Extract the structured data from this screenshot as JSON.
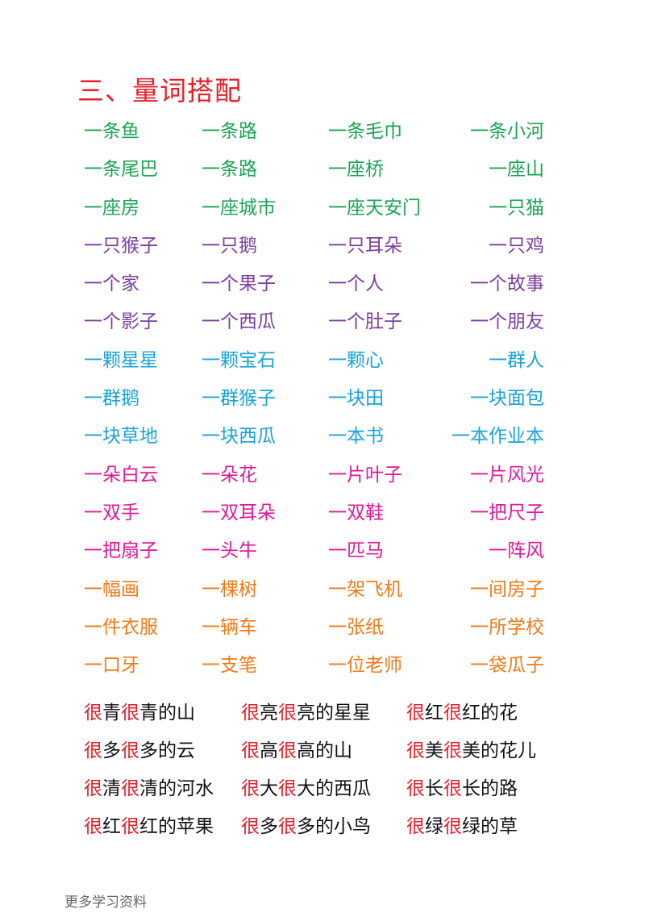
{
  "title": "三、量词搭配",
  "colors": {
    "title": "#e8202a",
    "green": "#1aa454",
    "red": "#e8202a",
    "purple": "#7b3fa0",
    "blue": "#18a3d9",
    "magenta": "#e0199a",
    "orange": "#ef7a18",
    "black": "#111111",
    "footer": "#666666"
  },
  "rows": [
    {
      "cells": [
        {
          "q": "一条",
          "n": "鱼",
          "qc": "#1aa454",
          "nc": "#1aa454"
        },
        {
          "q": "一条",
          "n": "路",
          "qc": "#1aa454",
          "nc": "#1aa454"
        },
        {
          "q": "一条",
          "n": "毛巾",
          "qc": "#1aa454",
          "nc": "#1aa454"
        },
        {
          "q": "一条",
          "n": "小河",
          "qc": "#1aa454",
          "nc": "#1aa454"
        }
      ]
    },
    {
      "cells": [
        {
          "q": "一条",
          "n": "尾巴",
          "qc": "#1aa454",
          "nc": "#1aa454"
        },
        {
          "q": "一条",
          "n": "路",
          "qc": "#1aa454",
          "nc": "#1aa454"
        },
        {
          "q": "一座",
          "n": "桥",
          "qc": "#1aa454",
          "nc": "#1aa454"
        },
        {
          "q": "一座",
          "n": "山",
          "qc": "#1aa454",
          "nc": "#1aa454"
        }
      ]
    },
    {
      "cells": [
        {
          "q": "一座",
          "n": "房",
          "qc": "#1aa454",
          "nc": "#1aa454"
        },
        {
          "q": "一座",
          "n": "城市",
          "qc": "#1aa454",
          "nc": "#1aa454"
        },
        {
          "q": "一座",
          "n": "天安门",
          "qc": "#1aa454",
          "nc": "#1aa454"
        },
        {
          "q": "一只",
          "n": "猫",
          "qc": "#1aa454",
          "nc": "#1aa454"
        }
      ]
    },
    {
      "cells": [
        {
          "q": "一只",
          "n": "猴子",
          "qc": "#7b3fa0",
          "nc": "#7b3fa0"
        },
        {
          "q": "一只",
          "n": "鹅",
          "qc": "#7b3fa0",
          "nc": "#7b3fa0"
        },
        {
          "q": "一只",
          "n": "耳朵",
          "qc": "#7b3fa0",
          "nc": "#7b3fa0"
        },
        {
          "q": "一只",
          "n": "鸡",
          "qc": "#7b3fa0",
          "nc": "#7b3fa0"
        }
      ]
    },
    {
      "cells": [
        {
          "q": "一个",
          "n": "家",
          "qc": "#7b3fa0",
          "nc": "#7b3fa0"
        },
        {
          "q": "一个",
          "n": "果子",
          "qc": "#7b3fa0",
          "nc": "#7b3fa0"
        },
        {
          "q": "一个",
          "n": "人",
          "qc": "#7b3fa0",
          "nc": "#7b3fa0"
        },
        {
          "q": "一个",
          "n": "故事",
          "qc": "#7b3fa0",
          "nc": "#7b3fa0"
        }
      ]
    },
    {
      "cells": [
        {
          "q": "一个",
          "n": "影子",
          "qc": "#7b3fa0",
          "nc": "#7b3fa0"
        },
        {
          "q": "一个",
          "n": "西瓜",
          "qc": "#7b3fa0",
          "nc": "#7b3fa0"
        },
        {
          "q": "一个",
          "n": "肚子",
          "qc": "#7b3fa0",
          "nc": "#7b3fa0"
        },
        {
          "q": "一个",
          "n": "朋友",
          "qc": "#7b3fa0",
          "nc": "#7b3fa0"
        }
      ]
    },
    {
      "cells": [
        {
          "q": "一颗",
          "n": "星星",
          "qc": "#18a3d9",
          "nc": "#18a3d9"
        },
        {
          "q": "一颗",
          "n": "宝石",
          "qc": "#18a3d9",
          "nc": "#18a3d9"
        },
        {
          "q": "一颗",
          "n": "心",
          "qc": "#18a3d9",
          "nc": "#18a3d9"
        },
        {
          "q": "一群",
          "n": "人",
          "qc": "#18a3d9",
          "nc": "#18a3d9"
        }
      ]
    },
    {
      "cells": [
        {
          "q": "一群",
          "n": "鹅",
          "qc": "#18a3d9",
          "nc": "#18a3d9"
        },
        {
          "q": "一群",
          "n": "猴子",
          "qc": "#18a3d9",
          "nc": "#18a3d9"
        },
        {
          "q": "一块",
          "n": "田",
          "qc": "#18a3d9",
          "nc": "#18a3d9"
        },
        {
          "q": "一块",
          "n": "面包",
          "qc": "#18a3d9",
          "nc": "#18a3d9"
        }
      ]
    },
    {
      "cells": [
        {
          "q": "一块",
          "n": "草地",
          "qc": "#18a3d9",
          "nc": "#18a3d9"
        },
        {
          "q": "一块",
          "n": "西瓜",
          "qc": "#18a3d9",
          "nc": "#18a3d9"
        },
        {
          "q": "一本",
          "n": "书",
          "qc": "#18a3d9",
          "nc": "#18a3d9"
        },
        {
          "q": "一本",
          "n": "作业本",
          "qc": "#18a3d9",
          "nc": "#18a3d9"
        }
      ]
    },
    {
      "cells": [
        {
          "q": "一朵",
          "n": "白云",
          "qc": "#e0199a",
          "nc": "#e0199a"
        },
        {
          "q": "一朵",
          "n": "花",
          "qc": "#e0199a",
          "nc": "#e0199a"
        },
        {
          "q": "一片",
          "n": "叶子",
          "qc": "#e0199a",
          "nc": "#e0199a"
        },
        {
          "q": "一片",
          "n": "风光",
          "qc": "#e0199a",
          "nc": "#e0199a"
        }
      ]
    },
    {
      "cells": [
        {
          "q": "一双",
          "n": "手",
          "qc": "#e0199a",
          "nc": "#e0199a"
        },
        {
          "q": "一双",
          "n": "耳朵",
          "qc": "#e0199a",
          "nc": "#e0199a"
        },
        {
          "q": "一双",
          "n": "鞋",
          "qc": "#e0199a",
          "nc": "#e0199a"
        },
        {
          "q": "一把",
          "n": "尺子",
          "qc": "#e0199a",
          "nc": "#e0199a"
        }
      ]
    },
    {
      "cells": [
        {
          "q": "一把",
          "n": "扇子",
          "qc": "#e0199a",
          "nc": "#e0199a"
        },
        {
          "q": "一头",
          "n": "牛",
          "qc": "#e0199a",
          "nc": "#e0199a"
        },
        {
          "q": "一匹",
          "n": "马",
          "qc": "#e0199a",
          "nc": "#e0199a"
        },
        {
          "q": "一阵",
          "n": "风",
          "qc": "#e0199a",
          "nc": "#e0199a"
        }
      ]
    },
    {
      "cells": [
        {
          "q": "一幅",
          "n": "画",
          "qc": "#ef7a18",
          "nc": "#ef7a18"
        },
        {
          "q": "一棵",
          "n": "树",
          "qc": "#ef7a18",
          "nc": "#ef7a18"
        },
        {
          "q": "一架",
          "n": "飞机",
          "qc": "#ef7a18",
          "nc": "#ef7a18"
        },
        {
          "q": "一间",
          "n": "房子",
          "qc": "#ef7a18",
          "nc": "#ef7a18"
        }
      ]
    },
    {
      "cells": [
        {
          "q": "一件",
          "n": "衣服",
          "qc": "#ef7a18",
          "nc": "#ef7a18"
        },
        {
          "q": "一辆",
          "n": "车",
          "qc": "#ef7a18",
          "nc": "#ef7a18"
        },
        {
          "q": "一张",
          "n": "纸",
          "qc": "#ef7a18",
          "nc": "#ef7a18"
        },
        {
          "q": "一所",
          "n": "学校",
          "qc": "#ef7a18",
          "nc": "#ef7a18"
        }
      ]
    },
    {
      "cells": [
        {
          "q": "一口",
          "n": "牙",
          "qc": "#ef7a18",
          "nc": "#ef7a18"
        },
        {
          "q": "一支",
          "n": "笔",
          "qc": "#ef7a18",
          "nc": "#ef7a18"
        },
        {
          "q": "一位",
          "n": "老师",
          "qc": "#ef7a18",
          "nc": "#ef7a18"
        },
        {
          "q": "一袋",
          "n": "瓜子",
          "qc": "#ef7a18",
          "nc": "#ef7a18"
        }
      ]
    }
  ],
  "phrases": [
    [
      {
        "a": "青",
        "b": "青的山"
      },
      {
        "a": "亮",
        "b": "亮的星星"
      },
      {
        "a": "红",
        "b": "红的花"
      }
    ],
    [
      {
        "a": "多",
        "b": "多的云"
      },
      {
        "a": "高",
        "b": "高的山"
      },
      {
        "a": "美",
        "b": "美的花儿"
      }
    ],
    [
      {
        "a": "清",
        "b": "清的河水"
      },
      {
        "a": "大",
        "b": "大的西瓜"
      },
      {
        "a": "长",
        "b": "长的路"
      }
    ],
    [
      {
        "a": "红",
        "b": "红的苹果"
      },
      {
        "a": "多",
        "b": "多的小鸟"
      },
      {
        "a": "绿",
        "b": "绿的草"
      }
    ]
  ],
  "hen": "很",
  "footer": "更多学习资料"
}
